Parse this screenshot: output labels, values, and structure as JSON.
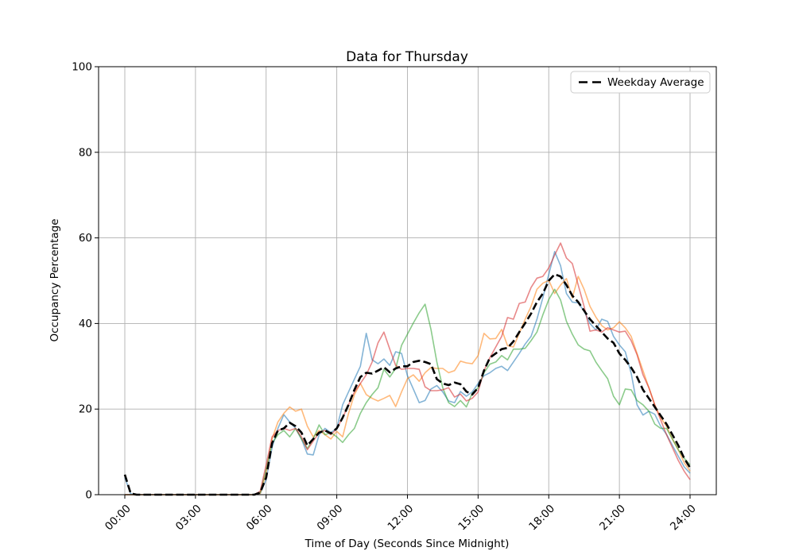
{
  "title": "Data for Thursday",
  "axes": {
    "xlabel": "Time of Day (Seconds Since Midnight)",
    "ylabel": "Occupancy Percentage",
    "x_tick_labels": [
      "00:00",
      "03:00",
      "06:00",
      "09:00",
      "12:00",
      "15:00",
      "18:00",
      "21:00",
      "24:00"
    ],
    "x_tick_hours": [
      0,
      3,
      6,
      9,
      12,
      15,
      18,
      21,
      24
    ],
    "y_ticks": [
      0,
      20,
      40,
      60,
      80,
      100
    ],
    "ylim": [
      0,
      100
    ],
    "grid": true,
    "legend_position": "upper right"
  },
  "legend": {
    "entries": [
      {
        "label": "Weekday Average",
        "line_style": "dashed",
        "color": "#000000"
      }
    ]
  },
  "colors": {
    "grid": "#b0b0b0",
    "spine": "#000000",
    "average_line": "#000000",
    "series_blue": "#1f77b4",
    "series_orange": "#ff7f0e",
    "series_green": "#2ca02c",
    "series_red": "#d62728"
  },
  "chart_data": {
    "type": "line",
    "x": {
      "unit": "hours_since_midnight",
      "start_hour": 0,
      "end_hour": 24,
      "step_hours": 0.25
    },
    "title": "Data for Thursday",
    "xlabel": "Time of Day (Seconds Since Midnight)",
    "ylabel": "Occupancy Percentage",
    "ylim": [
      0,
      100
    ],
    "series": [
      {
        "id": "series-1",
        "color": "#1f77b4",
        "alpha": 0.55,
        "width": 1.6,
        "dashed": false,
        "values": [
          4,
          0.2,
          0,
          0,
          0,
          0,
          0,
          0,
          0,
          0,
          0,
          0,
          0,
          0,
          0,
          0,
          0,
          0,
          0,
          0,
          0,
          0,
          0,
          0.3,
          3.5,
          11,
          15.5,
          18.7,
          17,
          15.5,
          13,
          9.5,
          9.3,
          14,
          15.5,
          14.5,
          15.5,
          21,
          24,
          27,
          30,
          37.7,
          31.5,
          30.6,
          31.7,
          30.2,
          33.4,
          33,
          27.8,
          24.7,
          21.5,
          22,
          24.7,
          25.5,
          24,
          21.9,
          21.5,
          24.1,
          23,
          24,
          26,
          27.8,
          28.5,
          29.5,
          30,
          29,
          31,
          33,
          35.2,
          37,
          41,
          46,
          51.5,
          56.8,
          53.5,
          47,
          45,
          44.8,
          42.9,
          40,
          38.5,
          41,
          40.5,
          37,
          35,
          33.4,
          28.4,
          21,
          18.6,
          19.5,
          18.8,
          16,
          14.1,
          11.5,
          9,
          6.5,
          5
        ]
      },
      {
        "id": "series-2",
        "color": "#ff7f0e",
        "alpha": 0.55,
        "width": 1.6,
        "dashed": false,
        "values": [
          0,
          0,
          0,
          0,
          0,
          0,
          0,
          0,
          0,
          0,
          0,
          0,
          0,
          0,
          0,
          0,
          0,
          0,
          0,
          0,
          0,
          0,
          0,
          0.3,
          5,
          13,
          17,
          19,
          20.5,
          19.5,
          20,
          16,
          13.5,
          15,
          14,
          13,
          14.8,
          13.5,
          19,
          23.4,
          26,
          23.4,
          22.5,
          21.9,
          22.5,
          23.2,
          20.6,
          24,
          27.1,
          28,
          26.5,
          28.5,
          29.7,
          29.5,
          29.5,
          28.5,
          29,
          31.2,
          30.8,
          30.6,
          32.5,
          37.7,
          36.4,
          36.5,
          38.6,
          34.8,
          34.5,
          37.7,
          41,
          44,
          48,
          49.4,
          50.1,
          47,
          49,
          50.5,
          46,
          51,
          48,
          44,
          41.5,
          39.5,
          38.5,
          39,
          40.4,
          39,
          37,
          33,
          29,
          25,
          21,
          18,
          16,
          13,
          10.5,
          7.5,
          5.5
        ]
      },
      {
        "id": "series-3",
        "color": "#2ca02c",
        "alpha": 0.55,
        "width": 1.6,
        "dashed": false,
        "values": [
          0,
          0,
          0,
          0,
          0,
          0,
          0,
          0,
          0,
          0,
          0,
          0,
          0,
          0,
          0,
          0,
          0,
          0,
          0,
          0,
          0,
          0,
          0,
          0.5,
          6,
          12,
          14,
          15,
          13.5,
          15.5,
          13,
          10.8,
          13,
          16.3,
          14,
          14.5,
          13.5,
          12.2,
          14,
          15.5,
          19,
          21.5,
          23.4,
          25,
          29.3,
          27.5,
          29.5,
          34.9,
          37.5,
          40.1,
          42.5,
          44.5,
          38.6,
          31,
          25,
          21.5,
          20.6,
          22,
          20.5,
          23.7,
          25,
          28.5,
          30.5,
          31,
          32.5,
          31.5,
          34,
          34,
          34.2,
          36,
          38,
          42,
          45.6,
          48,
          45.5,
          40.5,
          37.5,
          35,
          34,
          33.6,
          31,
          29,
          27.1,
          23,
          21,
          24.7,
          24.5,
          22,
          21,
          19.5,
          16.5,
          15.5,
          15.5,
          13,
          10.5,
          8.5,
          7
        ]
      },
      {
        "id": "series-4",
        "color": "#d62728",
        "alpha": 0.55,
        "width": 1.6,
        "dashed": false,
        "values": [
          0,
          0,
          0,
          0,
          0,
          0,
          0,
          0,
          0,
          0,
          0,
          0,
          0,
          0,
          0,
          0,
          0,
          0,
          0,
          0,
          0,
          0,
          0,
          0.8,
          7,
          13.5,
          15,
          15.5,
          15,
          15.5,
          13.5,
          10.5,
          12.5,
          14.5,
          15,
          14,
          15.4,
          18,
          21,
          24,
          26,
          28,
          31,
          35.5,
          38,
          34,
          30.2,
          29.3,
          29.5,
          29.5,
          29.3,
          25.2,
          24.3,
          24.3,
          24.5,
          25,
          22.8,
          23.5,
          21.9,
          22.5,
          24,
          29,
          32,
          34.5,
          37,
          41.4,
          41,
          44.7,
          45,
          48.4,
          50.6,
          51,
          53,
          56,
          58.8,
          55.3,
          54,
          49,
          44,
          38.2,
          38.5,
          38,
          39,
          38.5,
          38,
          38.2,
          36,
          32.7,
          28,
          25,
          21,
          17.5,
          14,
          11,
          8,
          5.5,
          3.5
        ]
      },
      {
        "id": "average",
        "label": "Weekday Average",
        "color": "#000000",
        "alpha": 1,
        "width": 2.6,
        "dashed": true,
        "values": [
          4.7,
          0.3,
          0,
          0,
          0,
          0,
          0,
          0,
          0,
          0,
          0,
          0,
          0,
          0,
          0,
          0,
          0,
          0,
          0,
          0,
          0,
          0,
          0,
          0.5,
          4,
          12,
          15,
          15.5,
          16.8,
          16,
          14.5,
          11.5,
          13,
          14.5,
          15,
          14.3,
          15.5,
          18,
          21,
          24.5,
          27.5,
          28.5,
          28.3,
          29,
          29.8,
          28.6,
          29.5,
          30,
          30,
          31,
          31.3,
          31,
          30.5,
          27,
          26,
          25.6,
          26.2,
          25.8,
          24.1,
          23.4,
          25,
          29,
          32,
          33,
          34,
          34.3,
          35.8,
          38,
          40.1,
          42.3,
          45,
          47,
          50,
          51.5,
          51,
          49,
          46.5,
          45,
          43,
          41,
          39.5,
          38,
          36.5,
          35.5,
          33,
          31.5,
          29.7,
          27.5,
          24.5,
          22.5,
          20.5,
          18.5,
          16.5,
          14,
          11.5,
          8.5,
          6.3
        ]
      }
    ]
  }
}
